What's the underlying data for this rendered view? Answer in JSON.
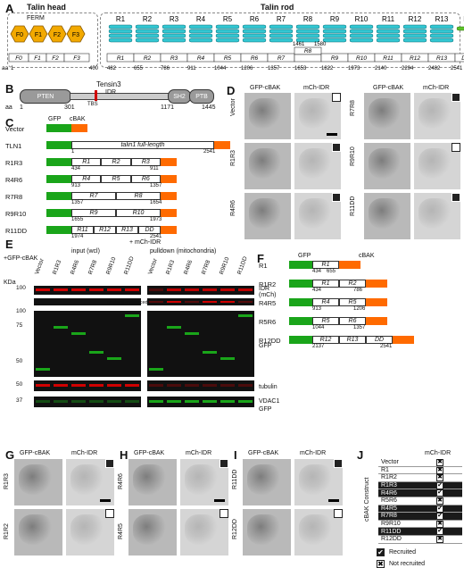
{
  "panels": {
    "A": "A",
    "B": "B",
    "C": "C",
    "D": "D",
    "E": "E",
    "F": "F",
    "G": "G",
    "H": "H",
    "I": "I",
    "J": "J"
  },
  "panelA": {
    "head_title": "Talin head",
    "rod_title": "Talin rod",
    "ferm_label": "FERM",
    "head_domains": [
      "F0",
      "F1",
      "F2",
      "F3"
    ],
    "rod_domains": [
      "R1",
      "R2",
      "R3",
      "R4",
      "R5",
      "R6",
      "R7",
      "R8",
      "R9",
      "R10",
      "R11",
      "R12",
      "R13",
      "DD"
    ],
    "box_labels": [
      "F0",
      "F1",
      "F2",
      "F3",
      "R1",
      "R2",
      "R3",
      "R4",
      "R5",
      "R6",
      "R7",
      "R8",
      "R9",
      "R10",
      "R11",
      "R12",
      "R13",
      "DD"
    ],
    "aa_label": "aa",
    "aa_numbers": [
      "1",
      "400",
      "482",
      "655",
      "786",
      "911",
      "1044",
      "1206",
      "1357",
      "1653",
      "1822",
      "1973",
      "2140",
      "2294",
      "2482",
      "2541"
    ],
    "r8_numbers": [
      "1461",
      "1580"
    ]
  },
  "panelB": {
    "tensin_label": "Tensin3",
    "domains": [
      "PTEN",
      "IDR",
      "SH2",
      "PTB"
    ],
    "tbs": "TBS",
    "aa_label": "aa",
    "numbers": [
      "1",
      "301",
      "1171",
      "1445"
    ]
  },
  "panelC": {
    "gfp": "GFP",
    "cbak": "cBAK",
    "rows": [
      {
        "name": "Vector",
        "box": "",
        "start": "",
        "end": ""
      },
      {
        "name": "TLN1",
        "box": "talin1 full-length",
        "start": "1",
        "end": "2541"
      },
      {
        "name": "R1R3",
        "box": "R1 R2 R3",
        "start": "434",
        "end": "911"
      },
      {
        "name": "R4R6",
        "box": "R4 R5 R6",
        "start": "913",
        "end": "1357"
      },
      {
        "name": "R7R8",
        "box": "R7 R8",
        "start": "1357",
        "end": "1654"
      },
      {
        "name": "R9R10",
        "box": "R9 R10",
        "start": "1655",
        "end": "1973"
      },
      {
        "name": "R11DD",
        "box": "R11 R12 R13 DD",
        "start": "1974",
        "end": "2541"
      }
    ]
  },
  "panelD": {
    "col_gfp": "GFP-cBAK",
    "col_idr": "mCh-IDR",
    "rows_left": [
      "Vector",
      "R1R3",
      "R4R6"
    ],
    "rows_right": [
      "R7R8",
      "R9R10",
      "R11DD"
    ]
  },
  "panelE": {
    "gfp_cbak": "+GFP-cBAK",
    "mch_idr": "+ mCh-IDR",
    "input": "input (wcl)",
    "pulldown": "pulldown (mitochondria)",
    "lanes": [
      "Vector",
      "R1R3",
      "R4R6",
      "R7R8",
      "R9R10",
      "R11DD"
    ],
    "kda": "KDa",
    "markers": [
      "100",
      "100",
      "75",
      "50",
      "50",
      "37"
    ],
    "blots": [
      "IDR (mCh)",
      "contrast-enhanced",
      "GFP",
      "tubulin",
      "VDAC1",
      "GFP"
    ]
  },
  "panelF": {
    "gfp": "GFP",
    "cbak": "cBAK",
    "rows": [
      {
        "name": "R1",
        "box": "R1",
        "start": "434",
        "end": "655"
      },
      {
        "name": "R1R2",
        "box": "R1 R2",
        "start": "434",
        "end": "786"
      },
      {
        "name": "R4R5",
        "box": "R4 R5",
        "start": "913",
        "end": "1206"
      },
      {
        "name": "R5R6",
        "box": "R5 R6",
        "start": "1044",
        "end": "1357"
      },
      {
        "name": "R12DD",
        "box": "R12 R13 DD",
        "start": "2137",
        "end": "2541"
      }
    ]
  },
  "panelG": {
    "col_gfp": "GFP-cBAK",
    "col_idr": "mCh-IDR",
    "rows": [
      "R1R3",
      "R1R2",
      "R1"
    ]
  },
  "panelH": {
    "col_gfp": "GFP-cBAK",
    "col_idr": "mCh-IDR",
    "rows": [
      "R4R6",
      "R4R5",
      "R5R6"
    ]
  },
  "panelI": {
    "col_gfp": "GFP-cBAK",
    "col_idr": "mCh-IDR",
    "rows": [
      "R11DD",
      "R12DD"
    ]
  },
  "panelJ": {
    "header": "mCh-IDR",
    "side_label": "cBAK Construct",
    "rows": [
      {
        "name": "Vector",
        "recruited": false
      },
      {
        "name": "R1",
        "recruited": false
      },
      {
        "name": "R1R2",
        "recruited": false
      },
      {
        "name": "R1R3",
        "recruited": true
      },
      {
        "name": "R4R6",
        "recruited": true
      },
      {
        "name": "R5R6",
        "recruited": false
      },
      {
        "name": "R4R5",
        "recruited": true
      },
      {
        "name": "R7R8",
        "recruited": true
      },
      {
        "name": "R9R10",
        "recruited": false
      },
      {
        "name": "R11DD",
        "recruited": true
      },
      {
        "name": "R12DD",
        "recruited": false
      }
    ],
    "legend_recruited": "Recruited",
    "legend_not": "Not recruited"
  },
  "colors": {
    "gfp": "#1aa51a",
    "cbak": "#ff6a00",
    "ferm": "#f2a900",
    "rod": "#33c7d2",
    "red": "#d00000"
  }
}
